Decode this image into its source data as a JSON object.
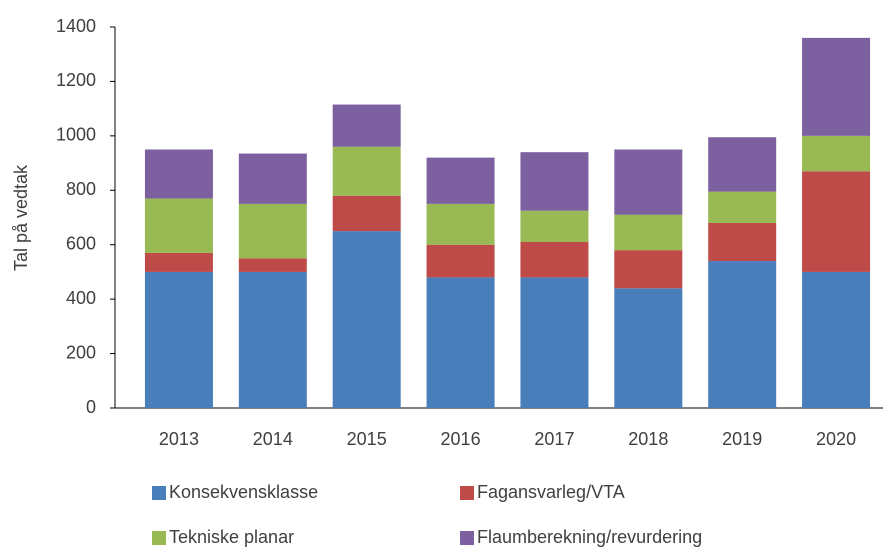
{
  "chart_data": {
    "type": "stacked_bar",
    "y_label": "Tal på vedtak",
    "categories": [
      "2013",
      "2014",
      "2015",
      "2016",
      "2017",
      "2018",
      "2019",
      "2020"
    ],
    "series": [
      {
        "name": "Konsekvensklasse",
        "color": "#4a7ebb",
        "values": [
          500,
          500,
          650,
          480,
          480,
          440,
          540,
          500
        ]
      },
      {
        "name": "Fagansvarleg/VTA",
        "color": "#be4b48",
        "values": [
          70,
          50,
          130,
          120,
          130,
          140,
          140,
          370
        ]
      },
      {
        "name": "Tekniske planar",
        "color": "#98b954",
        "values": [
          200,
          200,
          180,
          150,
          115,
          130,
          115,
          130
        ]
      },
      {
        "name": "Flaumberekning/revurdering",
        "color": "#7d60a0",
        "values": [
          180,
          185,
          155,
          170,
          215,
          240,
          200,
          360
        ]
      }
    ],
    "ylim": [
      0,
      1400
    ],
    "yticks": [
      0,
      200,
      400,
      600,
      800,
      1000,
      1200,
      1400
    ],
    "grid": false
  }
}
